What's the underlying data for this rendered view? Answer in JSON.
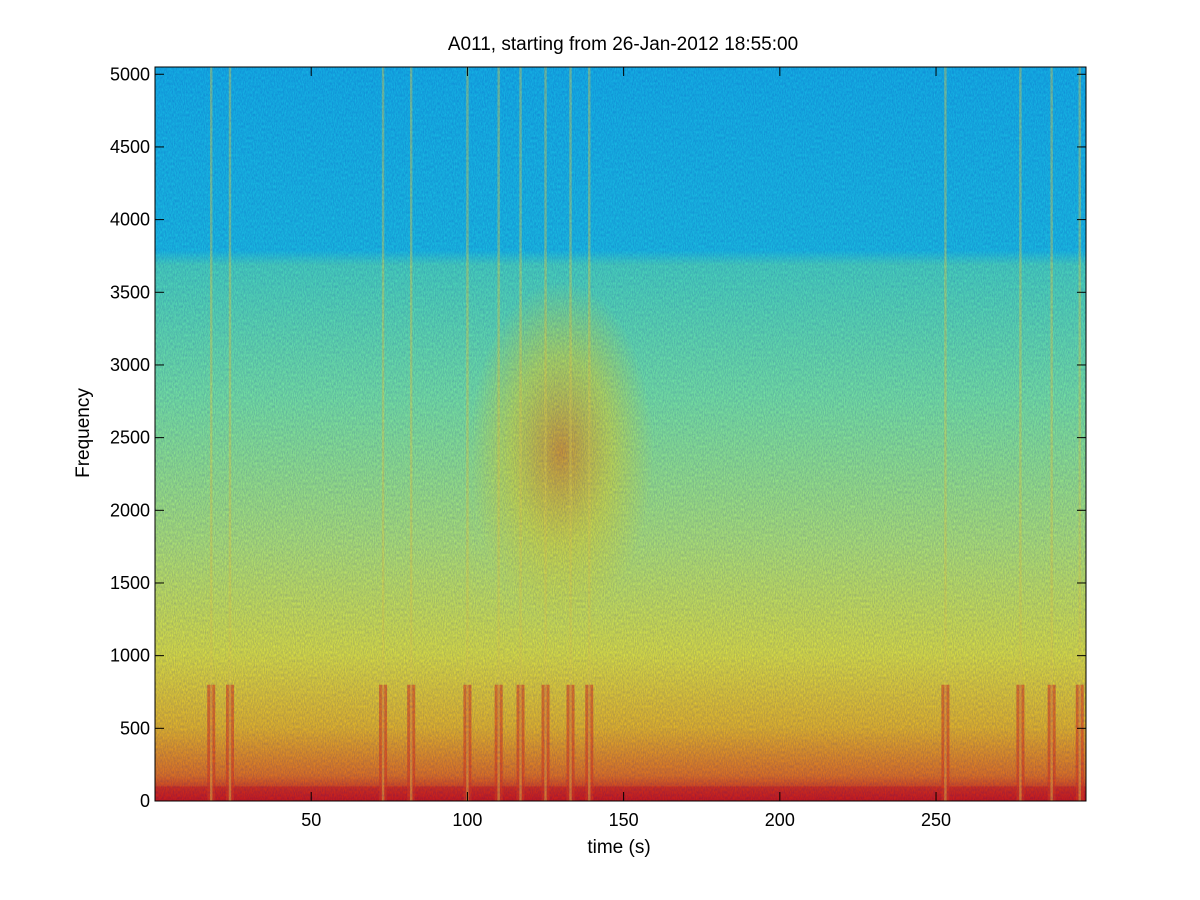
{
  "chart_data": {
    "type": "heatmap",
    "subtype": "spectrogram",
    "title": "A011, starting from 26-Jan-2012 18:55:00",
    "xlabel": "time (s)",
    "ylabel": "Frequency",
    "xlim": [
      0,
      298
    ],
    "ylim": [
      0,
      5050
    ],
    "xticks": [
      50,
      100,
      150,
      200,
      250
    ],
    "yticks": [
      0,
      500,
      1000,
      1500,
      2000,
      2500,
      3000,
      3500,
      4000,
      4500,
      5000
    ],
    "colormap": "jet",
    "grid": false,
    "intensity_bands": [
      {
        "freq_range": [
          3700,
          5050
        ],
        "level": "low",
        "color": "#1ac8e6"
      },
      {
        "freq_range": [
          1500,
          3700
        ],
        "level": "medium",
        "color": "#58e6b0"
      },
      {
        "freq_range": [
          0,
          1000
        ],
        "level": "medium-high",
        "color": "#e6e040"
      },
      {
        "freq_range": [
          0,
          100
        ],
        "level": "high",
        "color": "#e02010"
      }
    ],
    "broadband_events_time_s": [
      18,
      24,
      73,
      82,
      100,
      110,
      117,
      125,
      133,
      139,
      253,
      277,
      287,
      296
    ],
    "energy_hotspot": {
      "time_range_s": [
        110,
        150
      ],
      "freq_range": [
        1500,
        3300
      ]
    }
  }
}
